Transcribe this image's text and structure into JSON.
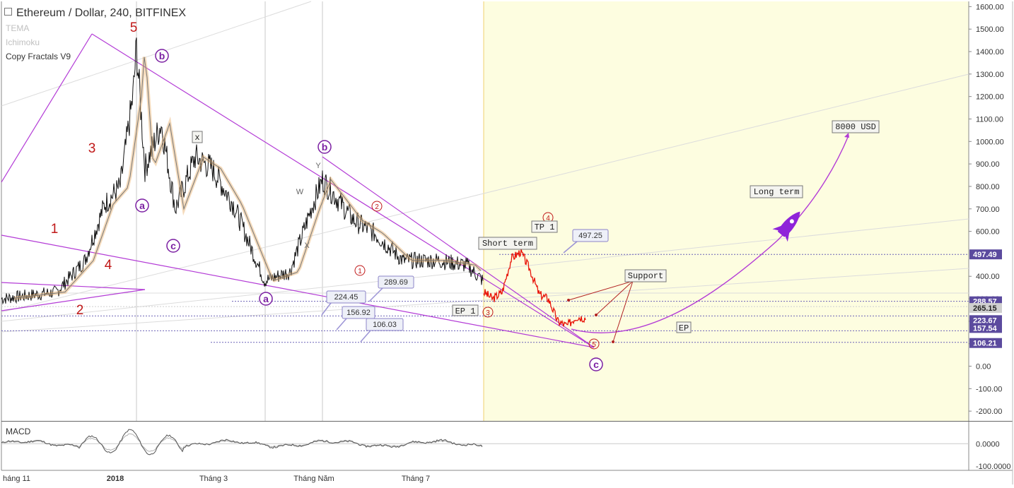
{
  "header": {
    "title": "Ethereum / Dollar, 240, BITFINEX",
    "indicators": [
      {
        "name": "TEMA",
        "color": "#c0c0c0"
      },
      {
        "name": "Ichimoku",
        "color": "#c0c0c0"
      },
      {
        "name": "Copy Fractals V9",
        "color": "#333333"
      }
    ]
  },
  "macd_label": "MACD",
  "colors": {
    "price": "#111111",
    "projection": "#e8150a",
    "elliott_purple": "#7b1fa2",
    "pattern_lines": "#b33bd6",
    "wave_red": "#c01818",
    "price_label_bg": "#5b4a9e",
    "forecast_zone": "#fdfde0",
    "annotation_bg": "#eef0f8"
  },
  "chart_data": {
    "type": "line",
    "title": "Ethereum / Dollar, 240, BITFINEX",
    "y_axis": {
      "range": [
        -260,
        1620
      ],
      "ticks": [
        "1600.00",
        "1500.00",
        "1400.00",
        "1300.00",
        "1200.00",
        "1100.00",
        "1000.00",
        "900.00",
        "800.00",
        "700.00",
        "600.00",
        "400.00",
        "300.00",
        "200.00",
        "100.00",
        "0.00",
        "-100.00",
        "-200.00"
      ]
    },
    "x_axis": {
      "ticks": [
        "háng 11",
        "2018",
        "Tháng 3",
        "Tháng Năm",
        "Tháng 7"
      ]
    },
    "macd_axis": {
      "ticks": [
        "0.0000",
        "-100.0000"
      ]
    },
    "price_scale_labels": [
      {
        "value": 497.49,
        "text": "497.49"
      },
      {
        "value": 288.57,
        "text": "288.57"
      },
      {
        "value": 265.15,
        "text": "265.15"
      },
      {
        "value": 223.67,
        "text": "223.67"
      },
      {
        "value": 157.54,
        "text": "157.54"
      },
      {
        "value": 106.21,
        "text": "106.21"
      }
    ],
    "series": [
      {
        "kind": "historical",
        "x": [
          "Nov 2017",
          "Dec 2017",
          "Jan 2018",
          "Jan 2018",
          "Feb 2018",
          "Mar 2018",
          "Apr 2018",
          "May 2018",
          "Jun 2018",
          "Jul 2018",
          "Aug 2018"
        ],
        "values": [
          300,
          470,
          1420,
          800,
          930,
          800,
          380,
          830,
          590,
          460,
          380
        ]
      },
      {
        "kind": "projection",
        "values": [
          330,
          300,
          330,
          480,
          510,
          430,
          320,
          300,
          200,
          180,
          220,
          215
        ]
      }
    ],
    "elliott_labels": {
      "primary": [
        "1",
        "2",
        "3",
        "4",
        "5"
      ],
      "abc": [
        "a",
        "b",
        "c",
        "a",
        "b",
        "c",
        "c"
      ],
      "wxy": [
        "W",
        "X",
        "Y"
      ],
      "minor": [
        "1",
        "2",
        "3",
        "4",
        "5"
      ]
    },
    "annotations": {
      "box_values": [
        "224.45",
        "156.92",
        "106.03",
        "289.69",
        "497.25"
      ],
      "text_boxes": [
        "x",
        "Short term",
        "TP 1",
        "EP 1",
        "EP",
        "Support",
        "Long term",
        "8000 USD"
      ]
    }
  }
}
